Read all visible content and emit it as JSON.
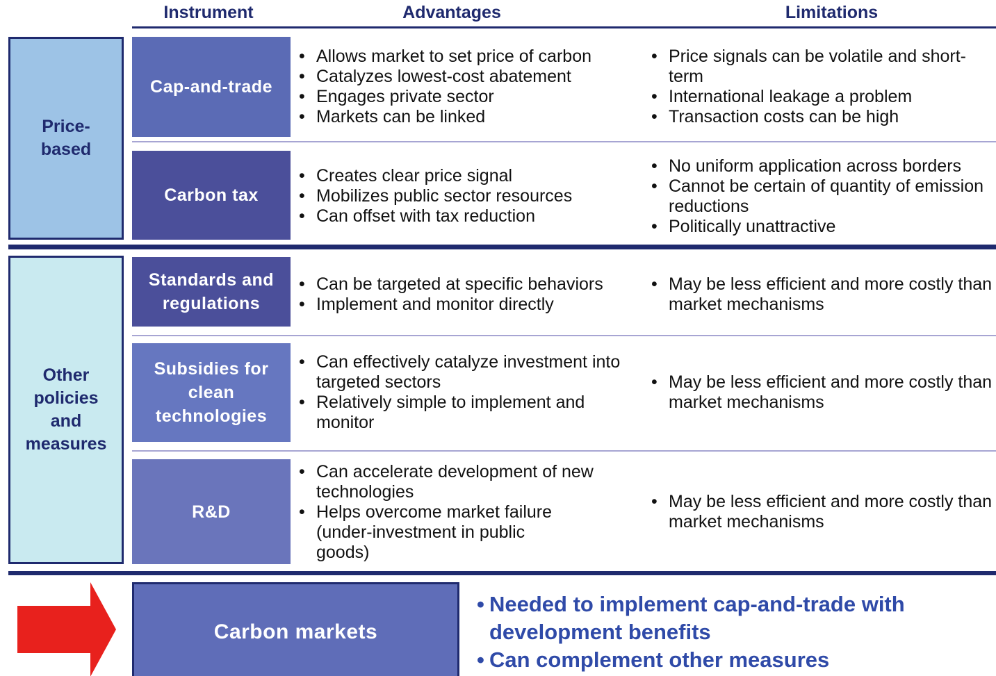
{
  "header": {
    "instrument": "Instrument",
    "advantages": "Advantages",
    "limitations": "Limitations"
  },
  "groups": [
    {
      "label": "Price-based",
      "rows": [
        {
          "instrument": "Cap-and-trade",
          "advantages": [
            "Allows market to set price of carbon",
            "Catalyzes lowest-cost abatement",
            "Engages private sector",
            "Markets can be linked"
          ],
          "limitations": [
            "Price signals can be volatile and short-term",
            "International leakage a  problem",
            "Transaction costs can be high"
          ]
        },
        {
          "instrument": "Carbon tax",
          "advantages": [
            "Creates clear price signal",
            "Mobilizes public sector resources",
            "Can offset with tax reduction"
          ],
          "limitations": [
            "No uniform application across borders",
            "Cannot be certain of quantity of emission reductions",
            "Politically unattractive"
          ]
        }
      ]
    },
    {
      "label": "Other policies and measures",
      "rows": [
        {
          "instrument": "Standards and regulations",
          "advantages": [
            "Can be targeted at specific behaviors",
            "Implement and monitor directly"
          ],
          "limitations": [
            "May be less efficient and more costly than market mechanisms"
          ]
        },
        {
          "instrument": "Subsidies for clean technologies",
          "advantages": [
            "Can effectively catalyze investment into targeted sectors",
            "Relatively simple to implement and monitor"
          ],
          "limitations": [
            "May be less efficient and more costly than market mechanisms"
          ]
        },
        {
          "instrument": "R&D",
          "advantages": [
            "Can accelerate development of new technologies",
            "Helps overcome market failure (under-investment in public goods)"
          ],
          "limitations": [
            "May be less efficient and more costly than market mechanisms"
          ]
        }
      ]
    }
  ],
  "bottom": {
    "box": "Carbon markets",
    "bullets": [
      "Needed to implement cap-and-trade with development benefits",
      "Can complement other measures"
    ]
  }
}
